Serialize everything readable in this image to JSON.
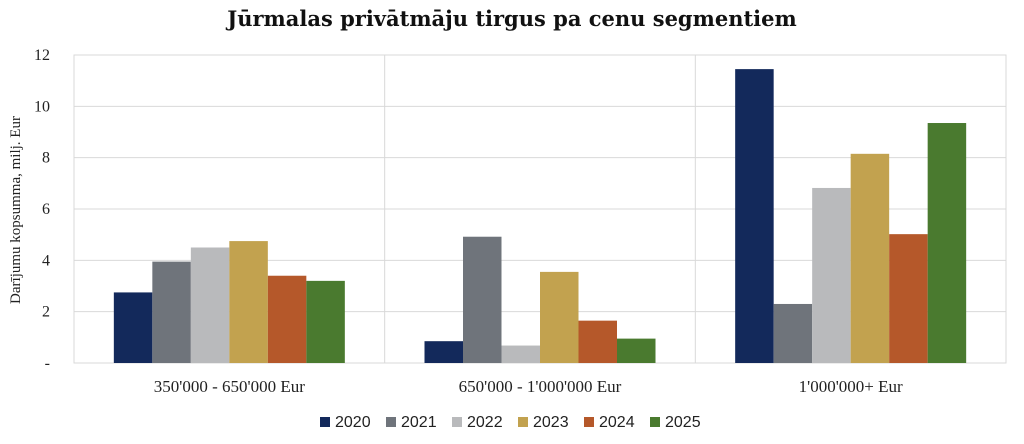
{
  "chart_data": {
    "type": "bar",
    "title": "Jūrmalas privātmāju tirgus pa cenu segmentiem",
    "ylabel": "Darījumu kopsumma, milj. Eur",
    "xlabel": "",
    "categories": [
      "350'000 - 650'000 Eur",
      "650'000 - 1'000'000 Eur",
      "1'000'000+ Eur"
    ],
    "ylim": [
      0,
      12
    ],
    "yticks": [
      0,
      2,
      4,
      6,
      8,
      10,
      12
    ],
    "ytick_labels": [
      "-",
      "2",
      "4",
      "6",
      "8",
      "10",
      "12"
    ],
    "grid": true,
    "legend_position": "bottom",
    "series": [
      {
        "name": "2020",
        "color": "#13295b",
        "values": [
          2.75,
          0.85,
          11.45
        ]
      },
      {
        "name": "2021",
        "color": "#6f747b",
        "values": [
          3.95,
          4.92,
          2.3
        ]
      },
      {
        "name": "2022",
        "color": "#b9babc",
        "values": [
          4.5,
          0.68,
          6.82
        ]
      },
      {
        "name": "2023",
        "color": "#c2a24f",
        "values": [
          4.75,
          3.55,
          8.15
        ]
      },
      {
        "name": "2024",
        "color": "#b5582a",
        "values": [
          3.4,
          1.65,
          5.02
        ]
      },
      {
        "name": "2025",
        "color": "#4a7a2f",
        "values": [
          3.2,
          0.95,
          9.35
        ]
      }
    ]
  }
}
